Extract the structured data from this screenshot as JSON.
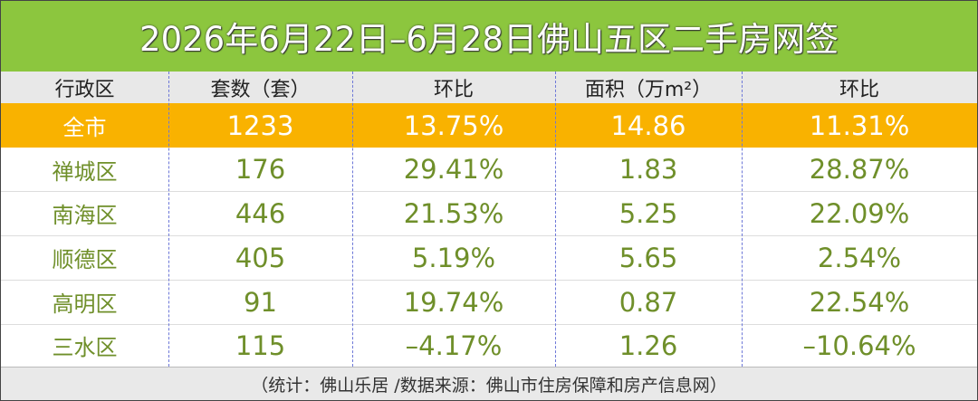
{
  "title": "2026年6月22日–6月28日佛山五区二手房网签",
  "table": {
    "header": [
      "行政区",
      "套数（套）",
      "环比",
      "面积（万m²）",
      "环比"
    ],
    "rows": [
      [
        "全市",
        "1233",
        "13.75%",
        "14.86",
        "11.31%"
      ],
      [
        "禅城区",
        "176",
        "29.41%",
        "1.83",
        "28.87%"
      ],
      [
        "南海区",
        "446",
        "21.53%",
        "5.25",
        "22.09%"
      ],
      [
        "顺德区",
        "405",
        "5.19%",
        "5.65",
        "2.54%"
      ],
      [
        "高明区",
        "91",
        "19.74%",
        "0.87",
        "22.54%"
      ],
      [
        "三水区",
        "115",
        "–4.17%",
        "1.26",
        "–10.64%"
      ]
    ]
  },
  "footer": "（统计：佛山乐居 /数据来源：佛山市住房保障和房产信息网）"
}
